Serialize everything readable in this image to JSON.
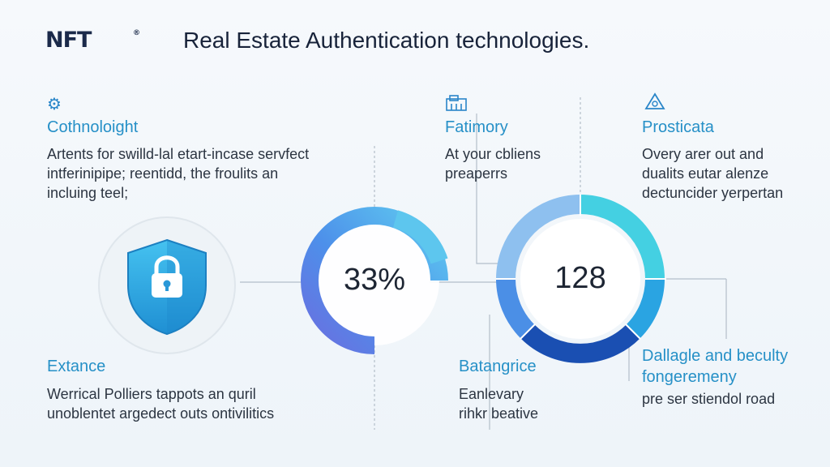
{
  "header": {
    "logo": "NFT",
    "logo_mark": "®",
    "title": "Real Estate Authentication technologies."
  },
  "sections": {
    "top_left": {
      "icon": "gear-icon",
      "title": "Cothnoloight",
      "lines": [
        "Artents for swilld-lal etart-incase servfect",
        "intferinipipe; reentidd, the froulits an",
        "incluing teel;"
      ]
    },
    "top_middle": {
      "icon": "building-icon",
      "title": "Fatimory",
      "lines": [
        "At your cbliens",
        "preaperrs"
      ]
    },
    "top_right": {
      "icon": "warning-icon",
      "title": "Prosticata",
      "lines": [
        "Overy arer out and",
        "dualits eutar alenze",
        "dectuncider yerpertan"
      ]
    },
    "bottom_left": {
      "title": "Extance",
      "lines": [
        "Werrical Polliers tappots an quril",
        "unoblentet argedect outs ontivilitics"
      ]
    },
    "bottom_middle": {
      "title": "Batangrice",
      "lines": [
        "Eanlevary",
        "rihkr beative"
      ]
    },
    "bottom_right": {
      "title_lines": [
        "Dallagle and beculty",
        "fongeremeny"
      ],
      "lines": [
        "pre ser stiendol road"
      ]
    }
  },
  "graphics": {
    "shield_icon": "lock-shield-icon",
    "gauge_left_value": "33%",
    "gauge_right_value": "128",
    "colors": {
      "accent": "#2690c7",
      "shield": "#27a6df",
      "ring_light": "#5dc4ea",
      "ring_mid": "#3b8fe0",
      "ring_dark": "#1248a8",
      "ring_purple": "#6a6ee0"
    }
  }
}
